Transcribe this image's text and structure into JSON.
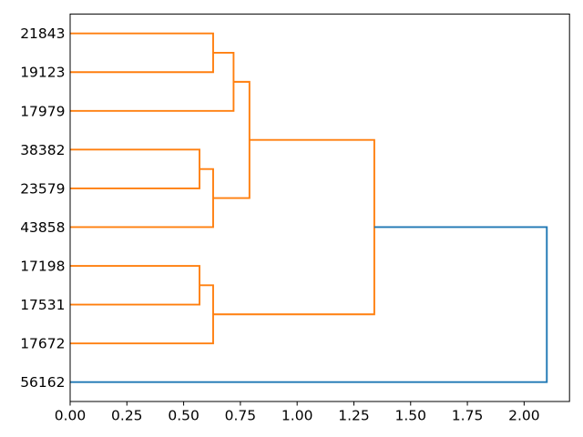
{
  "figure": {
    "background_color": "#ffffff",
    "axes_edge_color": "#000000"
  },
  "chart_data": {
    "type": "dendrogram",
    "orientation": "right",
    "title": "",
    "xlabel": "",
    "ylabel": "",
    "grid": false,
    "legend": null,
    "colors": {
      "cluster_link": "#ff7f0e",
      "root_link": "#1f77b4"
    },
    "leaves": [
      "21843",
      "19123",
      "17979",
      "38382",
      "23579",
      "43858",
      "17198",
      "17531",
      "17672",
      "56162"
    ],
    "links": [
      {
        "id": "m1",
        "children": [
          "21843",
          "19123"
        ],
        "height": 0.63,
        "color": "#ff7f0e"
      },
      {
        "id": "m2",
        "children": [
          "m1",
          "17979"
        ],
        "height": 0.72,
        "color": "#ff7f0e"
      },
      {
        "id": "m3",
        "children": [
          "38382",
          "23579"
        ],
        "height": 0.57,
        "color": "#ff7f0e"
      },
      {
        "id": "m4",
        "children": [
          "m3",
          "43858"
        ],
        "height": 0.63,
        "color": "#ff7f0e"
      },
      {
        "id": "m5",
        "children": [
          "m2",
          "m4"
        ],
        "height": 0.79,
        "color": "#ff7f0e"
      },
      {
        "id": "m6",
        "children": [
          "17198",
          "17531"
        ],
        "height": 0.57,
        "color": "#ff7f0e"
      },
      {
        "id": "m7",
        "children": [
          "m6",
          "17672"
        ],
        "height": 0.63,
        "color": "#ff7f0e"
      },
      {
        "id": "m8",
        "children": [
          "m5",
          "m7"
        ],
        "height": 1.34,
        "color": "#ff7f0e"
      },
      {
        "id": "m9",
        "children": [
          "m8",
          "56162"
        ],
        "height": 2.1,
        "color": "#1f77b4"
      }
    ],
    "xlim": [
      0,
      2.2
    ],
    "xticks": [
      {
        "value": 0.0,
        "label": "0.00"
      },
      {
        "value": 0.25,
        "label": "0.25"
      },
      {
        "value": 0.5,
        "label": "0.50"
      },
      {
        "value": 0.75,
        "label": "0.75"
      },
      {
        "value": 1.0,
        "label": "1.00"
      },
      {
        "value": 1.25,
        "label": "1.25"
      },
      {
        "value": 1.5,
        "label": "1.50"
      },
      {
        "value": 1.75,
        "label": "1.75"
      },
      {
        "value": 2.0,
        "label": "2.00"
      }
    ]
  }
}
